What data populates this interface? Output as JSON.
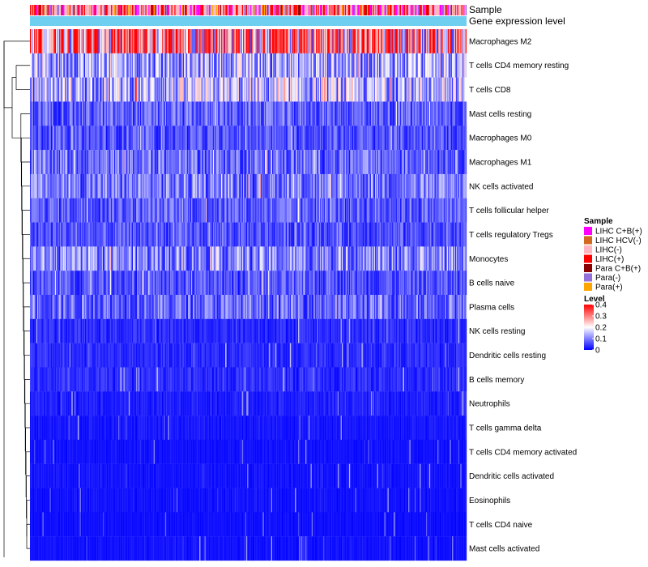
{
  "chart_data": {
    "type": "heatmap",
    "annotation_tracks": [
      "Sample",
      "Gene expression level"
    ],
    "rows": [
      "Macrophages M2",
      "T cells CD4 memory resting",
      "T cells CD8",
      "Mast cells resting",
      "Macrophages M0",
      "Macrophages M1",
      "NK cells activated",
      "T cells follicular helper",
      "T cells regulatory  Tregs",
      "Monocytes",
      "B cells naive",
      "Plasma cells",
      "NK cells resting",
      "Dendritic cells resting",
      "B cells memory",
      "Neutrophils",
      "T cells gamma delta",
      "T cells CD4 memory activated",
      "Dendritic cells activated",
      "Eosinophils",
      "T cells CD4 naive",
      "Mast cells activated"
    ],
    "row_mean_level": [
      0.3,
      0.13,
      0.14,
      0.07,
      0.06,
      0.08,
      0.09,
      0.07,
      0.06,
      0.1,
      0.06,
      0.08,
      0.03,
      0.03,
      0.03,
      0.02,
      0.015,
      0.01,
      0.012,
      0.01,
      0.008,
      0.01
    ],
    "n_samples": 420,
    "legend_sample": {
      "title": "Sample",
      "items": [
        {
          "label": "LIHC C+B(+)",
          "color": "#ff00ff"
        },
        {
          "label": "LIHC HCV(-)",
          "color": "#d2691e"
        },
        {
          "label": "LIHC(-)",
          "color": "#ffb6c1"
        },
        {
          "label": "LIHC(+)",
          "color": "#ff0000"
        },
        {
          "label": "Para C+B(+)",
          "color": "#8b0000"
        },
        {
          "label": "Para(-)",
          "color": "#9370db"
        },
        {
          "label": "Para(+)",
          "color": "#ffa500"
        }
      ]
    },
    "legend_level": {
      "title": "Level",
      "ticks": [
        "0.4",
        "0.3",
        "0.2",
        "0.1",
        "0"
      ],
      "range": [
        0,
        0.4
      ],
      "colors": [
        "#0000ff",
        "#ffffff",
        "#ff0000"
      ]
    },
    "expression_track_color": "#6ecff0"
  }
}
